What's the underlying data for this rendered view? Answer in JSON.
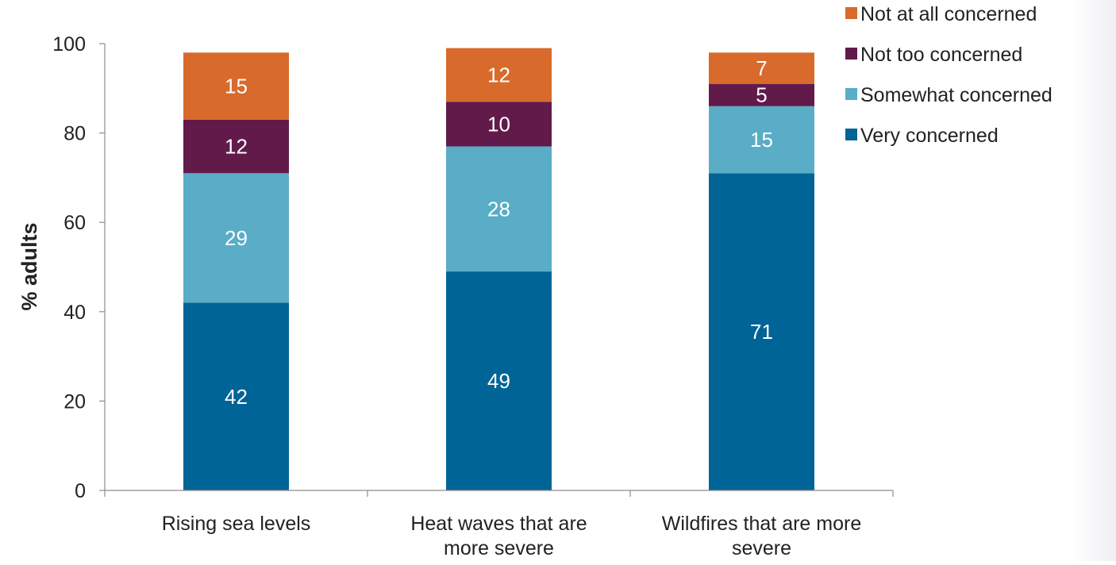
{
  "chart_data": {
    "type": "bar",
    "stacked": true,
    "categories": [
      [
        "Rising sea levels"
      ],
      [
        "Heat waves that are",
        "more severe"
      ],
      [
        "Wildfires that are more",
        "severe"
      ]
    ],
    "series": [
      {
        "name": "Very concerned",
        "color": "#006496",
        "values": [
          42,
          49,
          71
        ]
      },
      {
        "name": "Somewhat concerned",
        "color": "#59ADC6",
        "values": [
          29,
          28,
          15
        ]
      },
      {
        "name": "Not too concerned",
        "color": "#621A4B",
        "values": [
          12,
          10,
          5
        ]
      },
      {
        "name": "Not at all concerned",
        "color": "#D86A2C",
        "values": [
          15,
          12,
          7
        ]
      }
    ],
    "legend_order": [
      "Not at all concerned",
      "Not too concerned",
      "Somewhat concerned",
      "Very concerned"
    ],
    "legend_position": "top-right",
    "ylabel": "% adults",
    "xlabel": "",
    "ylim": [
      0,
      100
    ],
    "yticks": [
      0,
      20,
      40,
      60,
      80,
      100
    ],
    "grid": false,
    "data_label_color": "#ffffff"
  }
}
